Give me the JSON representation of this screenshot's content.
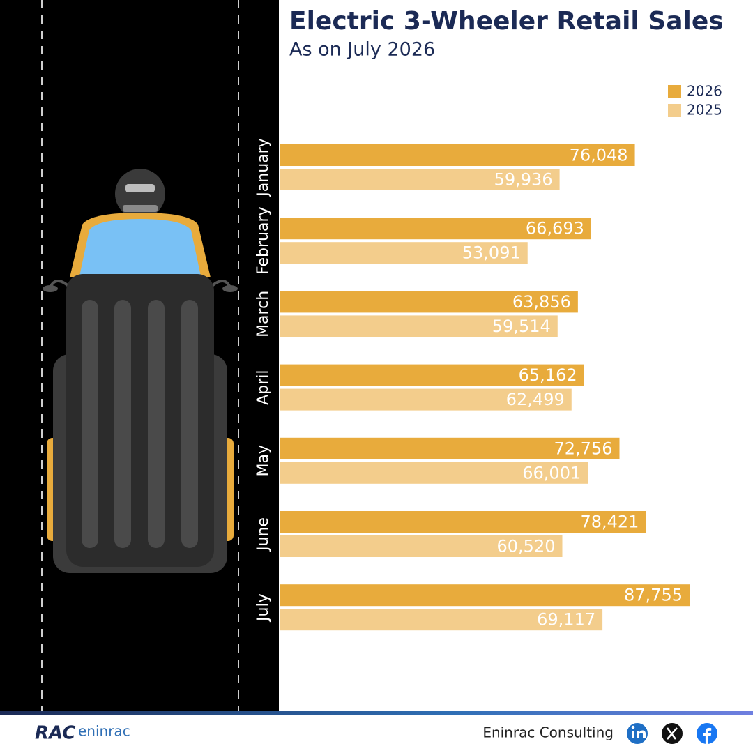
{
  "chart_data": {
    "type": "bar",
    "orientation": "horizontal",
    "title": "Electric 3-Wheeler Retail Sales",
    "subtitle": "As on July 2026",
    "categories": [
      "January",
      "February",
      "March",
      "April",
      "May",
      "June",
      "July"
    ],
    "series": [
      {
        "name": "2026",
        "color": "#e8ab3c",
        "values": [
          76048,
          66693,
          63856,
          65162,
          72756,
          78421,
          87755
        ],
        "value_labels": [
          "76,048",
          "66,693",
          "63,856",
          "65,162",
          "72,756",
          "78,421",
          "87,755"
        ]
      },
      {
        "name": "2025",
        "color": "#f3cd8c",
        "values": [
          59936,
          53091,
          59514,
          62499,
          66001,
          60520,
          69117
        ],
        "value_labels": [
          "59,936",
          "53,091",
          "59,514",
          "62,499",
          "66,001",
          "60,520",
          "69,117"
        ]
      }
    ],
    "legend": "top-right"
  },
  "footer": {
    "company": "Eninrac Consulting",
    "logo_mark": "RAC",
    "logo_text": "eninrac"
  }
}
